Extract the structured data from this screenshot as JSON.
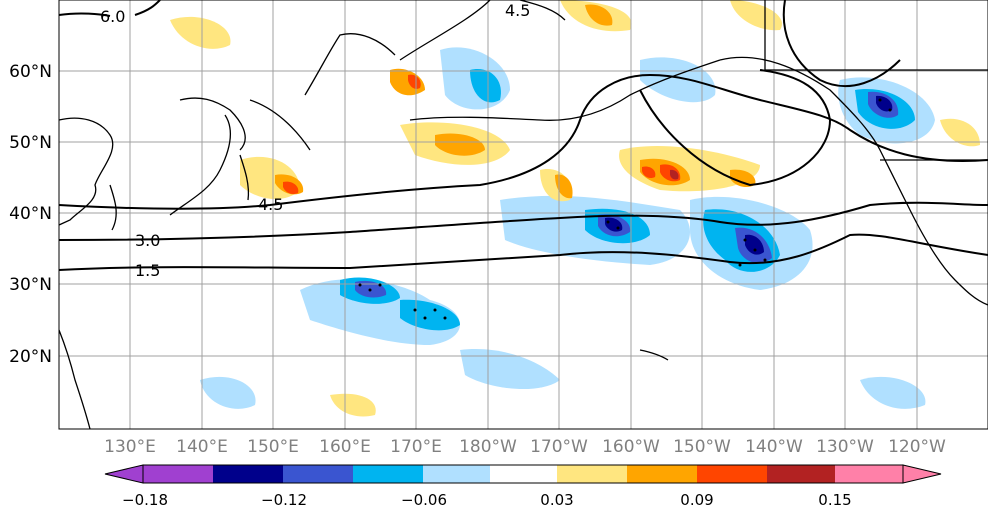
{
  "map": {
    "lat_labels": [
      "60°N",
      "50°N",
      "40°N",
      "30°N",
      "20°N"
    ],
    "lon_labels": [
      "130°E",
      "140°E",
      "150°E",
      "160°E",
      "170°E",
      "180°W",
      "170°W",
      "160°W",
      "150°W",
      "140°W",
      "130°W",
      "120°W"
    ],
    "contour_labels": [
      "6.0",
      "4.5",
      "4.5",
      "3.0",
      "1.5"
    ],
    "colors": {
      "land_line": "#000000",
      "grid": "#a0a0a0",
      "lat_label": "#000000",
      "lon_label": "#808080"
    }
  },
  "colorbar": {
    "colors": [
      "#a040d0",
      "#00008b",
      "#3a55d0",
      "#00b4f0",
      "#b0e0ff",
      "#ffffff",
      "#ffe680",
      "#ffa500",
      "#ff4500",
      "#b22222",
      "#ff80a8"
    ],
    "tick_labels": [
      "−0.18",
      "−0.12",
      "−0.06",
      "0.03",
      "0.09",
      "0.15"
    ]
  }
}
